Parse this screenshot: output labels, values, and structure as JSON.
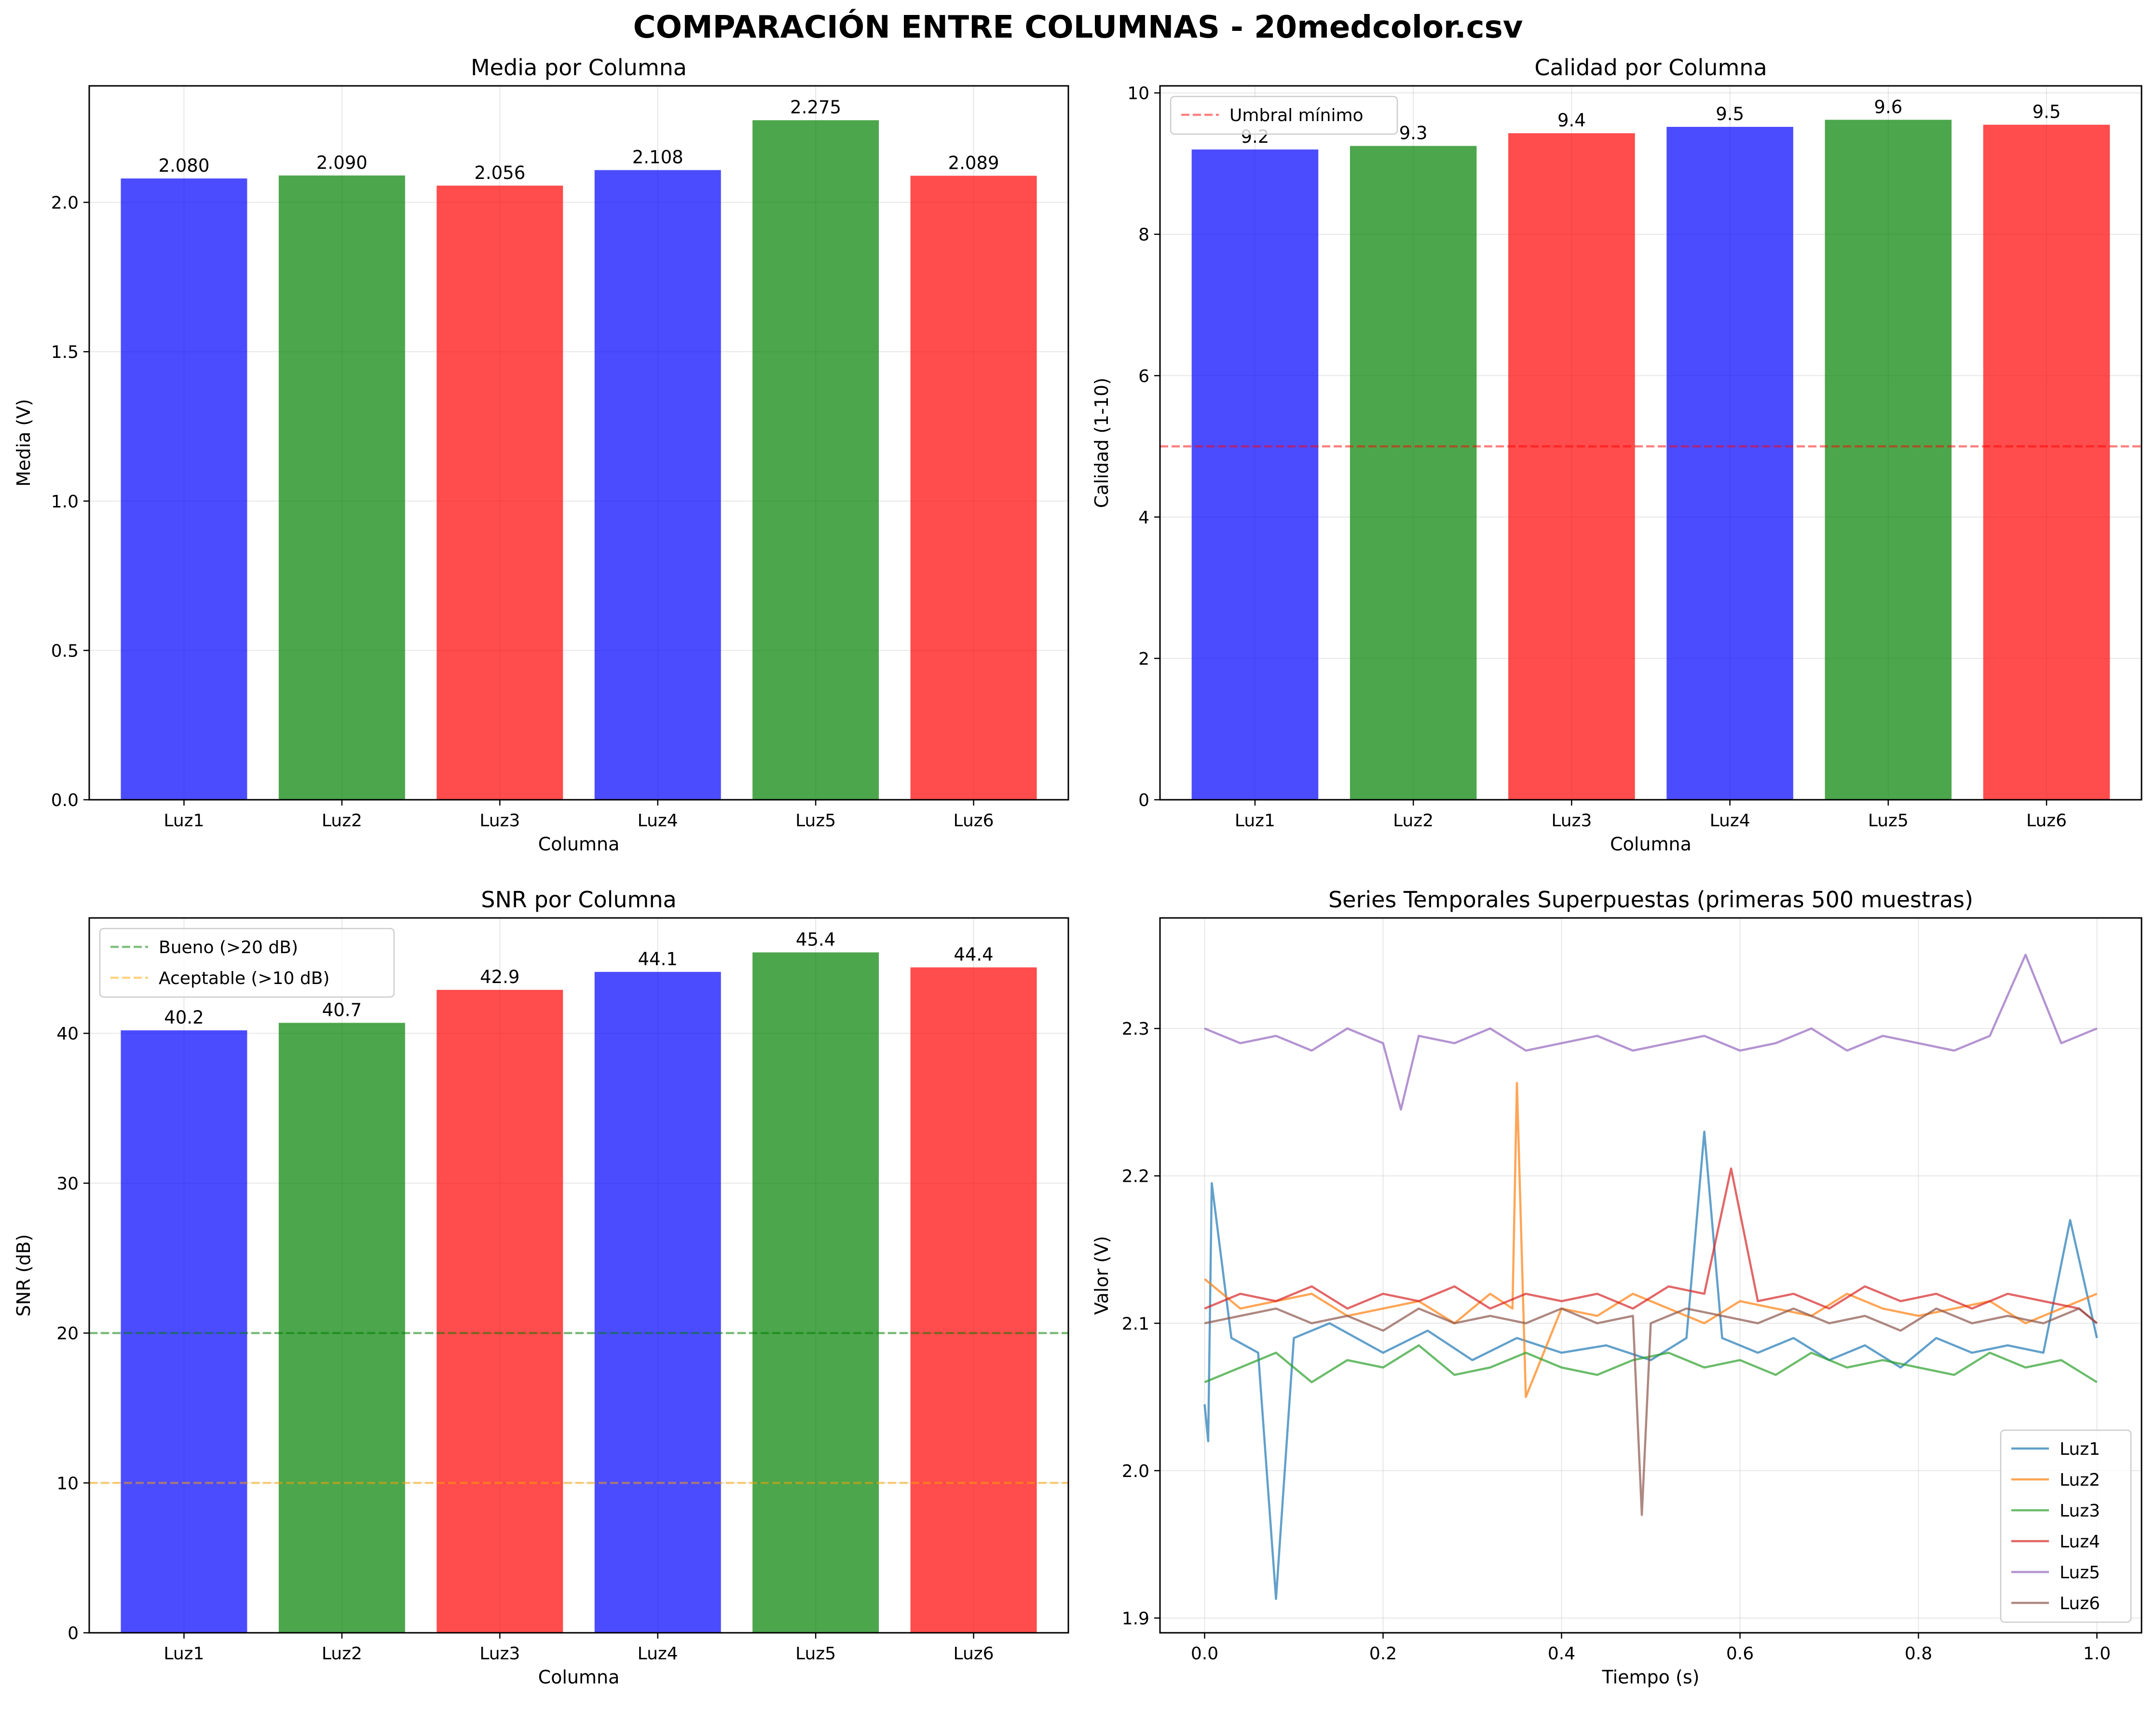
{
  "figure_title": "COMPARACIÓN ENTRE COLUMNAS - 20medcolor.csv",
  "colors": {
    "blue": "#0000ff",
    "green": "#008000",
    "red": "#ff0000"
  },
  "chart_data": [
    {
      "type": "bar",
      "title": "Media por Columna",
      "xlabel": "Columna",
      "ylabel": "Media (V)",
      "categories": [
        "Luz1",
        "Luz2",
        "Luz3",
        "Luz4",
        "Luz5",
        "Luz6"
      ],
      "values": [
        2.08,
        2.09,
        2.056,
        2.108,
        2.275,
        2.089
      ],
      "value_labels": [
        "2.080",
        "2.090",
        "2.056",
        "2.108",
        "2.275",
        "2.089"
      ],
      "bar_colors": [
        "#0000ff",
        "#008000",
        "#ff0000",
        "#0000ff",
        "#008000",
        "#ff0000"
      ],
      "ylim": [
        0,
        2.39
      ],
      "yticks": [
        0.0,
        0.5,
        1.0,
        1.5,
        2.0
      ],
      "ytick_labels": [
        "0.0",
        "0.5",
        "1.0",
        "1.5",
        "2.0"
      ],
      "grid": true
    },
    {
      "type": "bar",
      "title": "Calidad por Columna",
      "xlabel": "Columna",
      "ylabel": "Calidad (1-10)",
      "categories": [
        "Luz1",
        "Luz2",
        "Luz3",
        "Luz4",
        "Luz5",
        "Luz6"
      ],
      "values": [
        9.2,
        9.25,
        9.43,
        9.52,
        9.62,
        9.55
      ],
      "value_labels": [
        "9.2",
        "9.3",
        "9.4",
        "9.5",
        "9.6",
        "9.5"
      ],
      "bar_colors": [
        "#0000ff",
        "#008000",
        "#ff0000",
        "#0000ff",
        "#008000",
        "#ff0000"
      ],
      "ylim": [
        0,
        10.1
      ],
      "yticks": [
        0,
        2,
        4,
        6,
        8,
        10
      ],
      "ytick_labels": [
        "0",
        "2",
        "4",
        "6",
        "8",
        "10"
      ],
      "hlines": [
        {
          "y": 5,
          "color": "#ff0000",
          "label": "Umbral mínimo"
        }
      ],
      "legend": "top-left",
      "grid": true
    },
    {
      "type": "bar",
      "title": "SNR por Columna",
      "xlabel": "Columna",
      "ylabel": "SNR (dB)",
      "categories": [
        "Luz1",
        "Luz2",
        "Luz3",
        "Luz4",
        "Luz5",
        "Luz6"
      ],
      "values": [
        40.2,
        40.7,
        42.9,
        44.1,
        45.4,
        44.4
      ],
      "value_labels": [
        "40.2",
        "40.7",
        "42.9",
        "44.1",
        "45.4",
        "44.4"
      ],
      "bar_colors": [
        "#0000ff",
        "#008000",
        "#ff0000",
        "#0000ff",
        "#008000",
        "#ff0000"
      ],
      "ylim": [
        0,
        47.7
      ],
      "yticks": [
        0,
        10,
        20,
        30,
        40
      ],
      "ytick_labels": [
        "0",
        "10",
        "20",
        "30",
        "40"
      ],
      "hlines": [
        {
          "y": 20,
          "color": "#008000",
          "label": "Bueno (>20 dB)"
        },
        {
          "y": 10,
          "color": "#ffa500",
          "label": "Aceptable (>10 dB)"
        }
      ],
      "legend": "top-left",
      "grid": true
    },
    {
      "type": "line",
      "title": "Series Temporales Superpuestas (primeras 500 muestras)",
      "xlabel": "Tiempo (s)",
      "ylabel": "Valor (V)",
      "xlim": [
        -0.05,
        1.05
      ],
      "ylim": [
        1.89,
        2.375
      ],
      "xticks": [
        0.0,
        0.2,
        0.4,
        0.6,
        0.8,
        1.0
      ],
      "xtick_labels": [
        "0.0",
        "0.2",
        "0.4",
        "0.6",
        "0.8",
        "1.0"
      ],
      "yticks": [
        1.9,
        2.0,
        2.1,
        2.2,
        2.3
      ],
      "ytick_labels": [
        "1.9",
        "2.0",
        "2.1",
        "2.2",
        "2.3"
      ],
      "legend": "bottom-right",
      "grid": true,
      "series": [
        {
          "name": "Luz1",
          "color": "#1f77b4",
          "x": [
            0.0,
            0.004,
            0.008,
            0.03,
            0.06,
            0.08,
            0.1,
            0.14,
            0.2,
            0.25,
            0.3,
            0.35,
            0.4,
            0.45,
            0.5,
            0.54,
            0.56,
            0.58,
            0.62,
            0.66,
            0.7,
            0.74,
            0.78,
            0.82,
            0.86,
            0.9,
            0.94,
            0.97,
            1.0
          ],
          "y": [
            2.045,
            2.02,
            2.195,
            2.09,
            2.08,
            1.913,
            2.09,
            2.1,
            2.08,
            2.095,
            2.075,
            2.09,
            2.08,
            2.085,
            2.075,
            2.09,
            2.23,
            2.09,
            2.08,
            2.09,
            2.075,
            2.085,
            2.07,
            2.09,
            2.08,
            2.085,
            2.08,
            2.17,
            2.09
          ]
        },
        {
          "name": "Luz2",
          "color": "#ff7f0e",
          "x": [
            0.0,
            0.04,
            0.08,
            0.12,
            0.16,
            0.2,
            0.24,
            0.28,
            0.32,
            0.345,
            0.35,
            0.36,
            0.4,
            0.44,
            0.48,
            0.52,
            0.56,
            0.6,
            0.64,
            0.68,
            0.72,
            0.76,
            0.8,
            0.84,
            0.88,
            0.92,
            0.96,
            1.0
          ],
          "y": [
            2.13,
            2.11,
            2.115,
            2.12,
            2.105,
            2.11,
            2.115,
            2.1,
            2.12,
            2.11,
            2.263,
            2.05,
            2.11,
            2.105,
            2.12,
            2.11,
            2.1,
            2.115,
            2.11,
            2.105,
            2.12,
            2.11,
            2.105,
            2.11,
            2.115,
            2.1,
            2.11,
            2.12
          ]
        },
        {
          "name": "Luz3",
          "color": "#2ca02c",
          "x": [
            0.0,
            0.04,
            0.08,
            0.12,
            0.16,
            0.2,
            0.24,
            0.28,
            0.32,
            0.36,
            0.4,
            0.44,
            0.48,
            0.52,
            0.56,
            0.6,
            0.64,
            0.68,
            0.72,
            0.76,
            0.8,
            0.84,
            0.88,
            0.92,
            0.96,
            1.0
          ],
          "y": [
            2.06,
            2.07,
            2.08,
            2.06,
            2.075,
            2.07,
            2.085,
            2.065,
            2.07,
            2.08,
            2.07,
            2.065,
            2.075,
            2.08,
            2.07,
            2.075,
            2.065,
            2.08,
            2.07,
            2.075,
            2.07,
            2.065,
            2.08,
            2.07,
            2.075,
            2.06
          ]
        },
        {
          "name": "Luz4",
          "color": "#d62728",
          "x": [
            0.0,
            0.04,
            0.08,
            0.12,
            0.16,
            0.2,
            0.24,
            0.28,
            0.32,
            0.36,
            0.4,
            0.44,
            0.48,
            0.52,
            0.56,
            0.59,
            0.62,
            0.66,
            0.7,
            0.74,
            0.78,
            0.82,
            0.86,
            0.9,
            0.94,
            0.98,
            1.0
          ],
          "y": [
            2.11,
            2.12,
            2.115,
            2.125,
            2.11,
            2.12,
            2.115,
            2.125,
            2.11,
            2.12,
            2.115,
            2.12,
            2.11,
            2.125,
            2.12,
            2.205,
            2.115,
            2.12,
            2.11,
            2.125,
            2.115,
            2.12,
            2.11,
            2.12,
            2.115,
            2.11,
            2.1
          ]
        },
        {
          "name": "Luz5",
          "color": "#9467bd",
          "x": [
            0.0,
            0.04,
            0.08,
            0.12,
            0.16,
            0.2,
            0.22,
            0.24,
            0.28,
            0.32,
            0.36,
            0.4,
            0.44,
            0.48,
            0.52,
            0.56,
            0.6,
            0.64,
            0.68,
            0.72,
            0.76,
            0.8,
            0.84,
            0.88,
            0.92,
            0.96,
            1.0
          ],
          "y": [
            2.3,
            2.29,
            2.295,
            2.285,
            2.3,
            2.29,
            2.245,
            2.295,
            2.29,
            2.3,
            2.285,
            2.29,
            2.295,
            2.285,
            2.29,
            2.295,
            2.285,
            2.29,
            2.3,
            2.285,
            2.295,
            2.29,
            2.285,
            2.295,
            2.35,
            2.29,
            2.3
          ]
        },
        {
          "name": "Luz6",
          "color": "#8c564b",
          "x": [
            0.0,
            0.04,
            0.08,
            0.12,
            0.16,
            0.2,
            0.24,
            0.28,
            0.32,
            0.36,
            0.4,
            0.44,
            0.48,
            0.49,
            0.5,
            0.54,
            0.58,
            0.62,
            0.66,
            0.7,
            0.74,
            0.78,
            0.82,
            0.86,
            0.9,
            0.94,
            0.98,
            1.0
          ],
          "y": [
            2.1,
            2.105,
            2.11,
            2.1,
            2.105,
            2.095,
            2.11,
            2.1,
            2.105,
            2.1,
            2.11,
            2.1,
            2.105,
            1.97,
            2.1,
            2.11,
            2.105,
            2.1,
            2.11,
            2.1,
            2.105,
            2.095,
            2.11,
            2.1,
            2.105,
            2.1,
            2.11,
            2.1
          ]
        }
      ]
    }
  ]
}
